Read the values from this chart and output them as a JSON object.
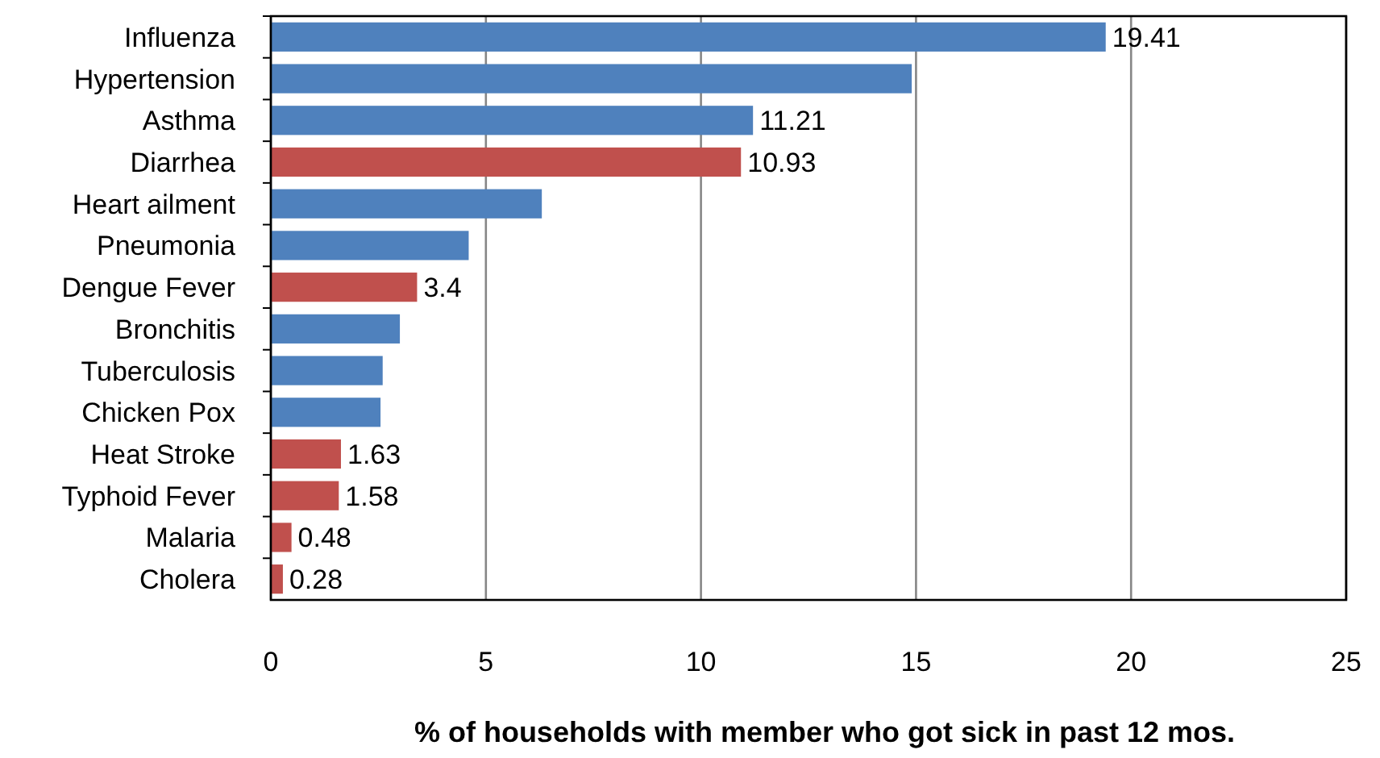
{
  "chart_data": {
    "type": "bar",
    "orientation": "horizontal",
    "xlabel": "% of households with member who got sick in past 12 mos.",
    "categories": [
      "Influenza",
      "Hypertension",
      "Asthma",
      "Diarrhea",
      "Heart ailment",
      "Pneumonia",
      "Dengue Fever",
      "Bronchitis",
      "Tuberculosis",
      "Chicken Pox",
      "Heat Stroke",
      "Typhoid Fever",
      "Malaria",
      "Cholera"
    ],
    "values": [
      19.41,
      14.9,
      11.21,
      10.93,
      6.3,
      4.6,
      3.4,
      3.0,
      2.6,
      2.55,
      1.63,
      1.58,
      0.48,
      0.28
    ],
    "colors": [
      "#4f81bd",
      "#4f81bd",
      "#4f81bd",
      "#c0504d",
      "#4f81bd",
      "#4f81bd",
      "#c0504d",
      "#4f81bd",
      "#4f81bd",
      "#4f81bd",
      "#c0504d",
      "#c0504d",
      "#c0504d",
      "#c0504d"
    ],
    "value_labels": [
      "19.41",
      null,
      "11.21",
      "10.93",
      null,
      null,
      "3.4",
      null,
      null,
      null,
      "1.63",
      "1.58",
      "0.48",
      "0.28"
    ],
    "xlim": [
      0,
      25
    ],
    "xticks": [
      0,
      5,
      10,
      15,
      20,
      25
    ],
    "grid": "x"
  }
}
